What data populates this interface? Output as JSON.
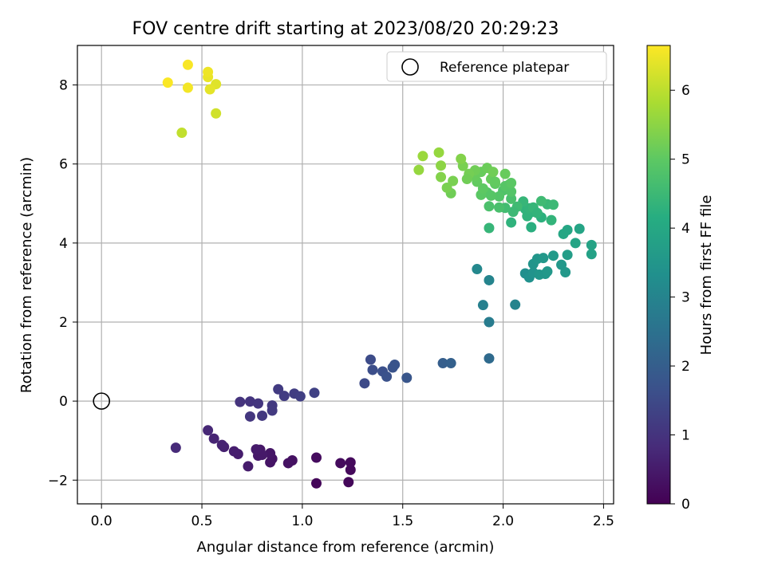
{
  "chart_data": {
    "type": "scatter",
    "title": "FOV centre drift starting at 2023/08/20 20:29:23",
    "xlabel": "Angular distance from reference (arcmin)",
    "ylabel": "Rotation from reference (arcmin)",
    "xlim": [
      -0.12,
      2.55
    ],
    "ylim": [
      -2.6,
      9.0
    ],
    "xticks": [
      0.0,
      0.5,
      1.0,
      1.5,
      2.0,
      2.5
    ],
    "xtick_labels": [
      "0.0",
      "0.5",
      "1.0",
      "1.5",
      "2.0",
      "2.5"
    ],
    "yticks": [
      -2,
      0,
      2,
      4,
      6,
      8
    ],
    "ytick_labels": [
      "−2",
      "0",
      "2",
      "4",
      "6",
      "8"
    ],
    "grid": true,
    "legend": {
      "position": "top-right",
      "label": "Reference platepar"
    },
    "reference_point": {
      "x": 0.0,
      "y": 0.0
    },
    "colorbar": {
      "label": "Hours from first FF file",
      "colormap": "viridis",
      "range": [
        0,
        6.65
      ],
      "ticks": [
        0,
        1,
        2,
        3,
        4,
        5,
        6
      ],
      "tick_labels": [
        "0",
        "1",
        "2",
        "3",
        "4",
        "5",
        "6"
      ]
    },
    "points": [
      {
        "x": 1.07,
        "y": -2.08,
        "t": 0.1
      },
      {
        "x": 1.23,
        "y": -2.05,
        "t": 0.12
      },
      {
        "x": 1.24,
        "y": -1.74,
        "t": 0.15
      },
      {
        "x": 1.24,
        "y": -1.55,
        "t": 0.17
      },
      {
        "x": 1.19,
        "y": -1.57,
        "t": 0.2
      },
      {
        "x": 1.07,
        "y": -1.43,
        "t": 0.22
      },
      {
        "x": 0.95,
        "y": -1.5,
        "t": 0.3
      },
      {
        "x": 0.93,
        "y": -1.57,
        "t": 0.32
      },
      {
        "x": 0.85,
        "y": -1.46,
        "t": 0.35
      },
      {
        "x": 0.84,
        "y": -1.55,
        "t": 0.37
      },
      {
        "x": 0.84,
        "y": -1.32,
        "t": 0.4
      },
      {
        "x": 0.79,
        "y": -1.23,
        "t": 0.42
      },
      {
        "x": 0.78,
        "y": -1.38,
        "t": 0.45
      },
      {
        "x": 0.8,
        "y": -1.36,
        "t": 0.47
      },
      {
        "x": 0.77,
        "y": -1.22,
        "t": 0.5
      },
      {
        "x": 0.73,
        "y": -1.65,
        "t": 0.52
      },
      {
        "x": 0.68,
        "y": -1.34,
        "t": 0.55
      },
      {
        "x": 0.66,
        "y": -1.27,
        "t": 0.57
      },
      {
        "x": 0.61,
        "y": -1.16,
        "t": 0.62
      },
      {
        "x": 0.6,
        "y": -1.11,
        "t": 0.65
      },
      {
        "x": 0.56,
        "y": -0.95,
        "t": 0.7
      },
      {
        "x": 0.53,
        "y": -0.74,
        "t": 0.75
      },
      {
        "x": 0.37,
        "y": -1.18,
        "t": 0.82
      },
      {
        "x": 0.69,
        "y": -0.02,
        "t": 1.0
      },
      {
        "x": 0.74,
        "y": -0.01,
        "t": 1.02
      },
      {
        "x": 0.78,
        "y": -0.06,
        "t": 1.05
      },
      {
        "x": 0.74,
        "y": -0.39,
        "t": 1.07
      },
      {
        "x": 0.8,
        "y": -0.37,
        "t": 1.1
      },
      {
        "x": 0.85,
        "y": -0.11,
        "t": 1.12
      },
      {
        "x": 0.85,
        "y": -0.24,
        "t": 1.14
      },
      {
        "x": 0.88,
        "y": 0.3,
        "t": 1.17
      },
      {
        "x": 0.91,
        "y": 0.13,
        "t": 1.2
      },
      {
        "x": 0.96,
        "y": 0.19,
        "t": 1.22
      },
      {
        "x": 0.99,
        "y": 0.12,
        "t": 1.25
      },
      {
        "x": 1.06,
        "y": 0.21,
        "t": 1.3
      },
      {
        "x": 1.31,
        "y": 0.45,
        "t": 1.5
      },
      {
        "x": 1.34,
        "y": 1.05,
        "t": 1.55
      },
      {
        "x": 1.35,
        "y": 0.79,
        "t": 1.6
      },
      {
        "x": 1.4,
        "y": 0.75,
        "t": 1.65
      },
      {
        "x": 1.42,
        "y": 0.62,
        "t": 1.68
      },
      {
        "x": 1.45,
        "y": 0.85,
        "t": 1.72
      },
      {
        "x": 1.46,
        "y": 0.92,
        "t": 1.75
      },
      {
        "x": 1.52,
        "y": 0.59,
        "t": 1.8
      },
      {
        "x": 1.7,
        "y": 0.96,
        "t": 2.0
      },
      {
        "x": 1.74,
        "y": 0.96,
        "t": 2.05
      },
      {
        "x": 1.93,
        "y": 1.08,
        "t": 2.3
      },
      {
        "x": 1.93,
        "y": 2.0,
        "t": 2.8
      },
      {
        "x": 1.9,
        "y": 2.43,
        "t": 2.9
      },
      {
        "x": 1.93,
        "y": 3.06,
        "t": 3.0
      },
      {
        "x": 1.87,
        "y": 3.34,
        "t": 3.1
      },
      {
        "x": 2.06,
        "y": 2.44,
        "t": 3.0
      },
      {
        "x": 2.11,
        "y": 3.23,
        "t": 3.3
      },
      {
        "x": 2.13,
        "y": 3.13,
        "t": 3.35
      },
      {
        "x": 2.15,
        "y": 3.25,
        "t": 3.4
      },
      {
        "x": 2.15,
        "y": 3.47,
        "t": 3.45
      },
      {
        "x": 2.17,
        "y": 3.6,
        "t": 3.5
      },
      {
        "x": 2.18,
        "y": 3.2,
        "t": 3.5
      },
      {
        "x": 2.2,
        "y": 3.62,
        "t": 3.55
      },
      {
        "x": 2.21,
        "y": 3.22,
        "t": 3.5
      },
      {
        "x": 2.22,
        "y": 3.28,
        "t": 3.55
      },
      {
        "x": 2.25,
        "y": 3.68,
        "t": 3.6
      },
      {
        "x": 2.29,
        "y": 3.45,
        "t": 3.55
      },
      {
        "x": 2.31,
        "y": 3.26,
        "t": 3.55
      },
      {
        "x": 2.32,
        "y": 3.7,
        "t": 3.7
      },
      {
        "x": 2.44,
        "y": 3.72,
        "t": 3.8
      },
      {
        "x": 2.44,
        "y": 3.95,
        "t": 3.85
      },
      {
        "x": 2.38,
        "y": 4.36,
        "t": 3.9
      },
      {
        "x": 2.36,
        "y": 4.0,
        "t": 3.9
      },
      {
        "x": 2.32,
        "y": 4.33,
        "t": 3.95
      },
      {
        "x": 2.3,
        "y": 4.23,
        "t": 3.95
      },
      {
        "x": 2.14,
        "y": 4.4,
        "t": 4.2
      },
      {
        "x": 2.19,
        "y": 4.65,
        "t": 4.25
      },
      {
        "x": 2.14,
        "y": 4.78,
        "t": 4.3
      },
      {
        "x": 2.12,
        "y": 4.68,
        "t": 4.3
      },
      {
        "x": 2.11,
        "y": 4.86,
        "t": 4.3
      },
      {
        "x": 2.13,
        "y": 4.88,
        "t": 4.35
      },
      {
        "x": 2.15,
        "y": 4.9,
        "t": 4.4
      },
      {
        "x": 2.17,
        "y": 4.76,
        "t": 4.35
      },
      {
        "x": 2.24,
        "y": 4.58,
        "t": 4.35
      },
      {
        "x": 2.1,
        "y": 5.05,
        "t": 4.4
      },
      {
        "x": 2.04,
        "y": 4.52,
        "t": 4.3
      },
      {
        "x": 1.93,
        "y": 4.38,
        "t": 4.4
      },
      {
        "x": 2.22,
        "y": 4.98,
        "t": 4.45
      },
      {
        "x": 2.25,
        "y": 4.97,
        "t": 4.5
      },
      {
        "x": 2.19,
        "y": 5.06,
        "t": 4.55
      },
      {
        "x": 2.07,
        "y": 4.92,
        "t": 4.55
      },
      {
        "x": 2.05,
        "y": 4.79,
        "t": 4.5
      },
      {
        "x": 2.01,
        "y": 4.89,
        "t": 4.6
      },
      {
        "x": 1.98,
        "y": 4.9,
        "t": 4.7
      },
      {
        "x": 1.93,
        "y": 4.93,
        "t": 4.75
      },
      {
        "x": 2.04,
        "y": 5.12,
        "t": 4.7
      },
      {
        "x": 2.0,
        "y": 5.33,
        "t": 4.8
      },
      {
        "x": 1.98,
        "y": 5.18,
        "t": 4.85
      },
      {
        "x": 1.94,
        "y": 5.2,
        "t": 4.9
      },
      {
        "x": 1.92,
        "y": 5.28,
        "t": 4.9
      },
      {
        "x": 1.89,
        "y": 5.22,
        "t": 4.95
      },
      {
        "x": 2.01,
        "y": 5.44,
        "t": 4.9
      },
      {
        "x": 2.04,
        "y": 5.3,
        "t": 4.85
      },
      {
        "x": 2.03,
        "y": 5.48,
        "t": 4.9
      },
      {
        "x": 2.04,
        "y": 5.52,
        "t": 4.95
      },
      {
        "x": 1.96,
        "y": 5.5,
        "t": 5.0
      },
      {
        "x": 1.9,
        "y": 5.38,
        "t": 5.0
      },
      {
        "x": 1.87,
        "y": 5.55,
        "t": 5.05
      },
      {
        "x": 1.86,
        "y": 5.7,
        "t": 5.1
      },
      {
        "x": 1.89,
        "y": 5.8,
        "t": 5.1
      },
      {
        "x": 1.92,
        "y": 5.9,
        "t": 5.15
      },
      {
        "x": 1.94,
        "y": 5.62,
        "t": 5.1
      },
      {
        "x": 1.96,
        "y": 5.55,
        "t": 5.05
      },
      {
        "x": 2.01,
        "y": 5.75,
        "t": 5.1
      },
      {
        "x": 1.95,
        "y": 5.8,
        "t": 5.2
      },
      {
        "x": 1.86,
        "y": 5.84,
        "t": 5.2
      },
      {
        "x": 1.83,
        "y": 5.75,
        "t": 5.25
      },
      {
        "x": 1.82,
        "y": 5.62,
        "t": 5.2
      },
      {
        "x": 1.8,
        "y": 5.95,
        "t": 5.3
      },
      {
        "x": 1.79,
        "y": 6.13,
        "t": 5.4
      },
      {
        "x": 1.74,
        "y": 5.26,
        "t": 5.2
      },
      {
        "x": 1.75,
        "y": 5.57,
        "t": 5.3
      },
      {
        "x": 1.72,
        "y": 5.4,
        "t": 5.3
      },
      {
        "x": 1.69,
        "y": 5.67,
        "t": 5.4
      },
      {
        "x": 1.69,
        "y": 5.96,
        "t": 5.5
      },
      {
        "x": 1.68,
        "y": 6.29,
        "t": 5.6
      },
      {
        "x": 1.6,
        "y": 6.2,
        "t": 5.65
      },
      {
        "x": 1.58,
        "y": 5.85,
        "t": 5.6
      },
      {
        "x": 0.4,
        "y": 6.79,
        "t": 6.05
      },
      {
        "x": 0.57,
        "y": 7.28,
        "t": 6.2
      },
      {
        "x": 0.57,
        "y": 8.02,
        "t": 6.35
      },
      {
        "x": 0.54,
        "y": 7.89,
        "t": 6.4
      },
      {
        "x": 0.53,
        "y": 8.2,
        "t": 6.45
      },
      {
        "x": 0.53,
        "y": 8.33,
        "t": 6.5
      },
      {
        "x": 0.43,
        "y": 7.93,
        "t": 6.55
      },
      {
        "x": 0.43,
        "y": 8.51,
        "t": 6.6
      },
      {
        "x": 0.33,
        "y": 8.06,
        "t": 6.62
      }
    ]
  }
}
